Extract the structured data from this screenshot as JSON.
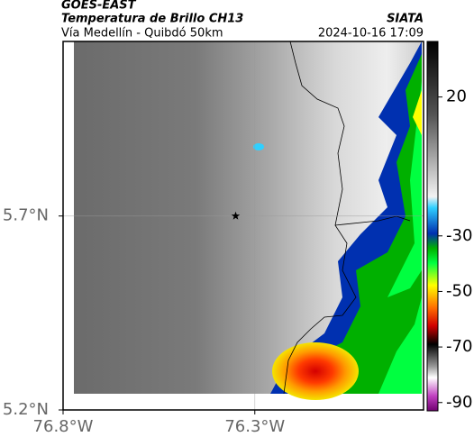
{
  "header": {
    "source": "GOES-EAST",
    "title": "Temperatura de Brillo CH13",
    "subtitle": "Vía Medellín - Quibdó 50km",
    "brand": "SIATA",
    "timestamp": "2024-10-16 17:09"
  },
  "map": {
    "xlim": [
      -76.8,
      -75.86
    ],
    "ylim": [
      5.2,
      6.15
    ],
    "xticks": [
      {
        "value": -76.8,
        "label": "76.8°W"
      },
      {
        "value": -76.3,
        "label": "76.3°W"
      }
    ],
    "yticks": [
      {
        "value": 5.2,
        "label": "5.2°N"
      },
      {
        "value": 5.7,
        "label": "5.7°N"
      }
    ],
    "marker": {
      "lon": -76.35,
      "lat": 5.7
    },
    "colorbar": {
      "lim": [
        -93,
        40
      ],
      "ticks": [
        20,
        -30,
        -50,
        -70,
        -90
      ]
    }
  }
}
